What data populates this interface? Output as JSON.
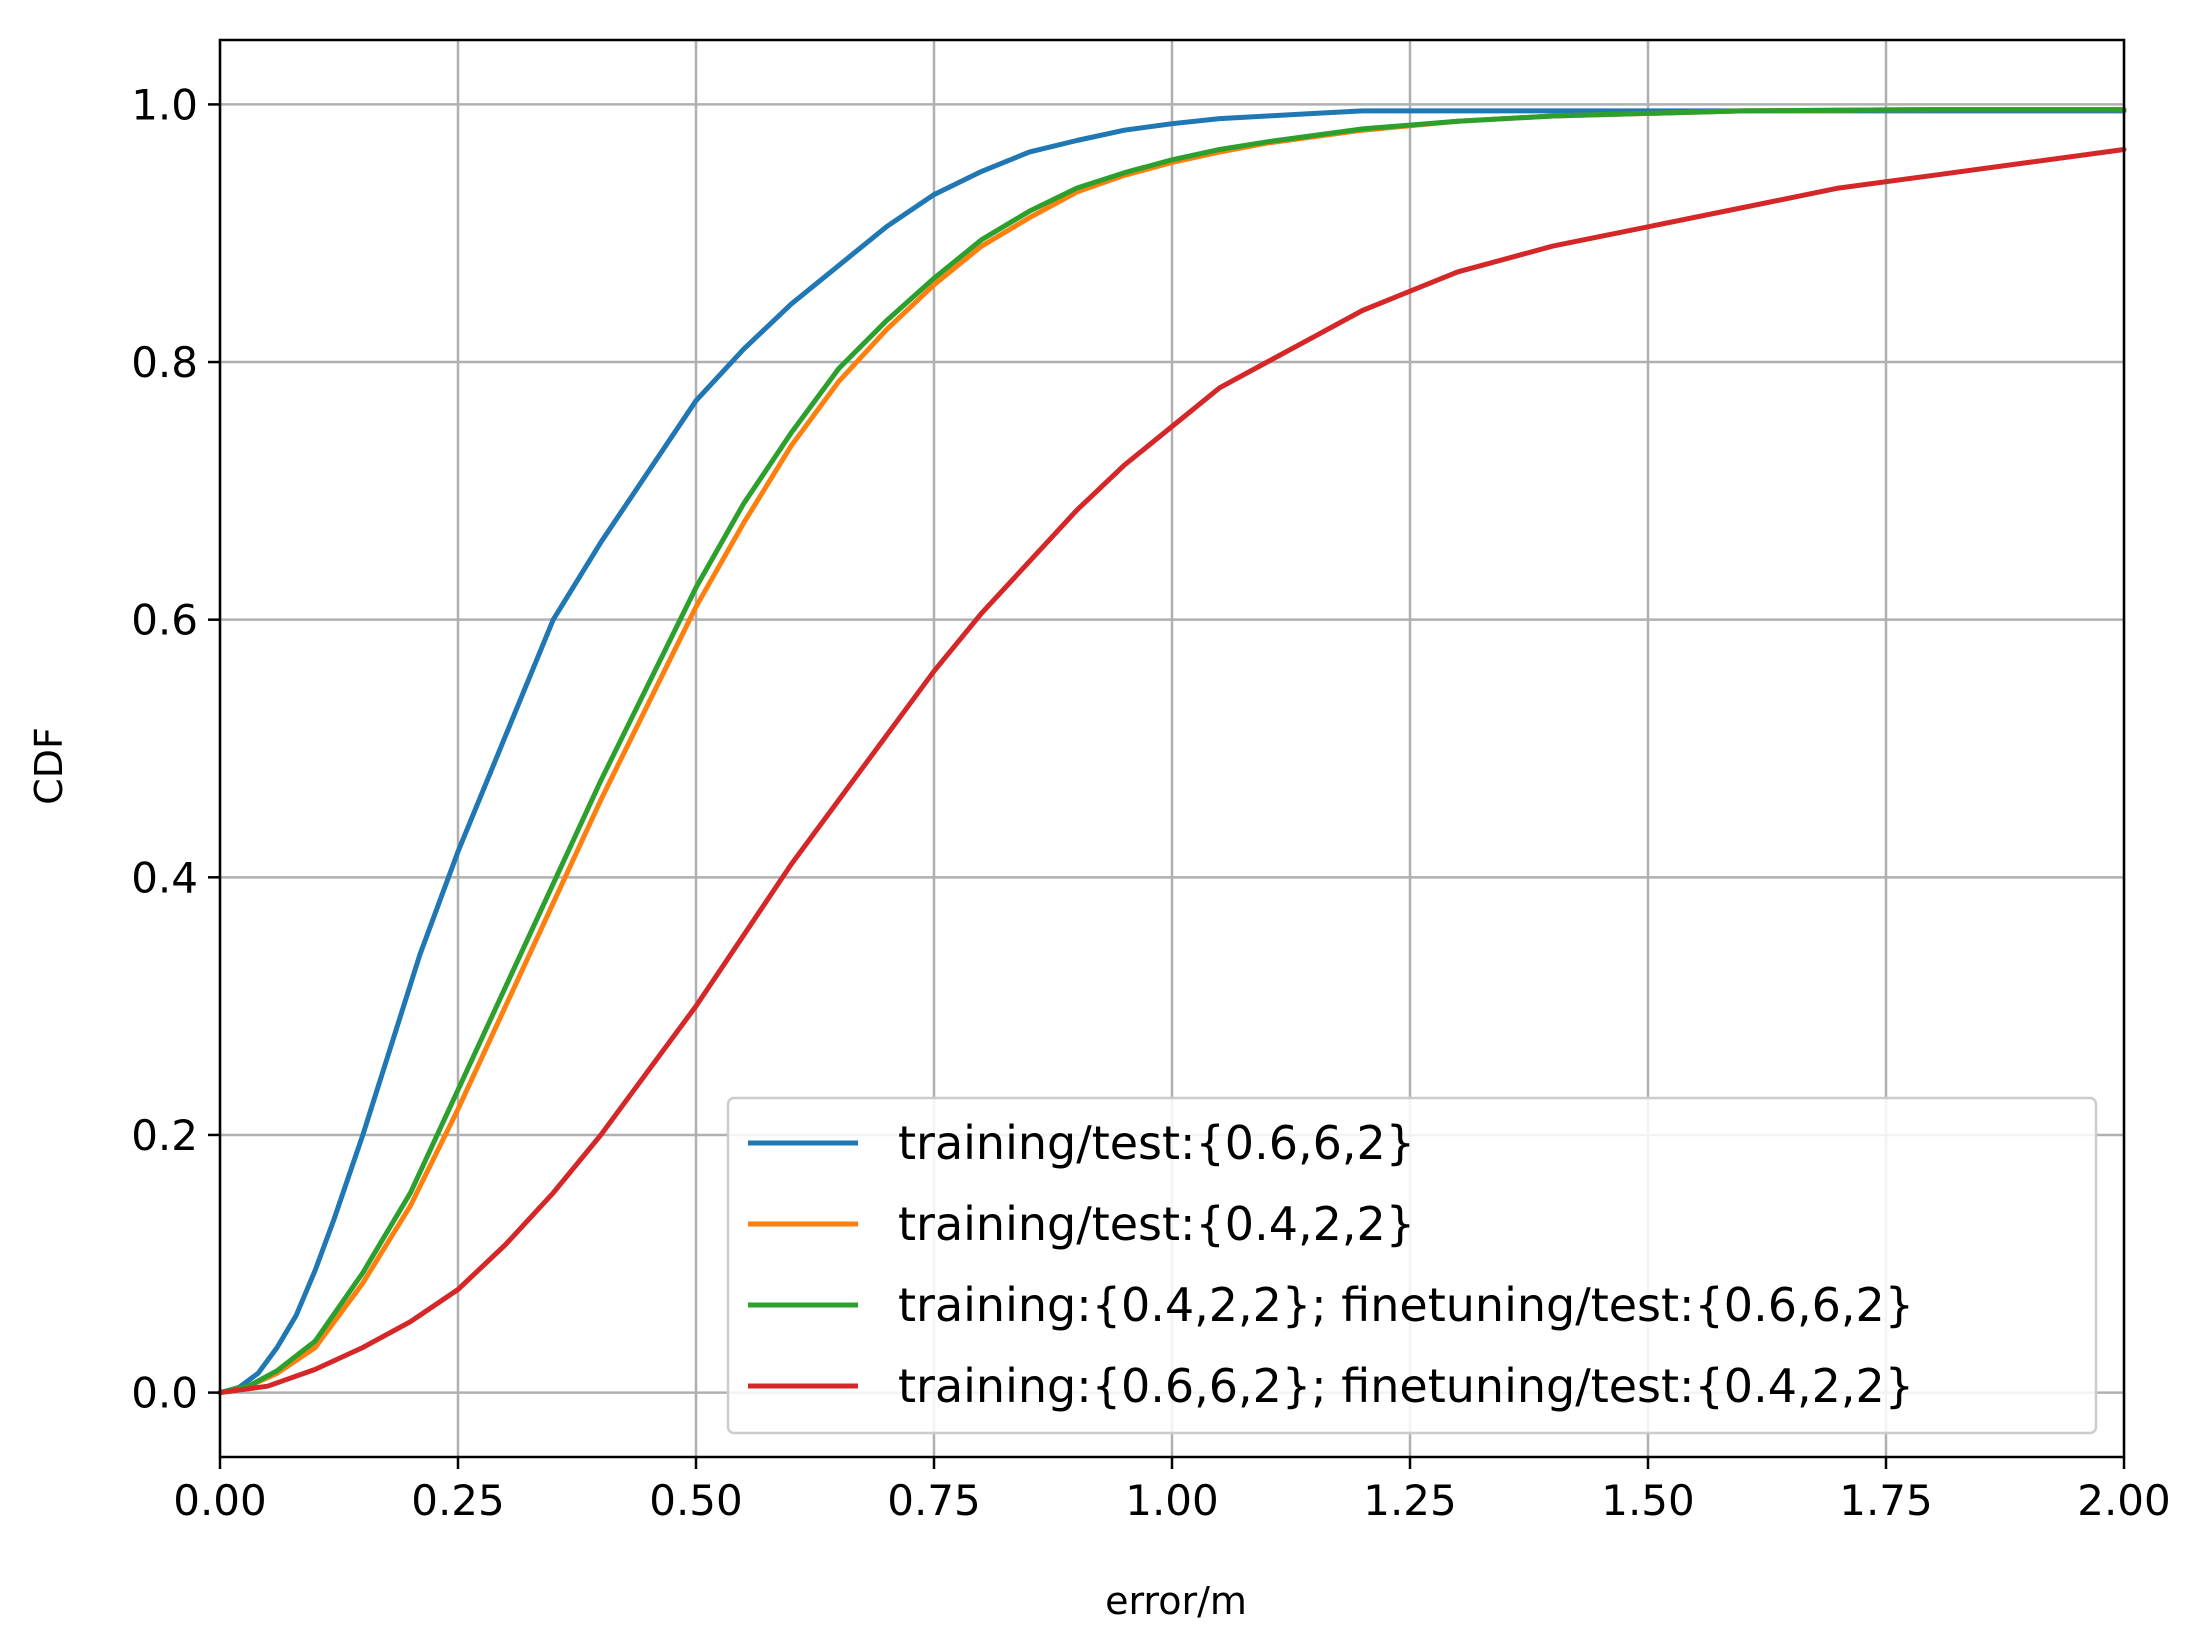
{
  "chart_data": {
    "type": "line",
    "title": "",
    "xlabel": "error/m",
    "ylabel": "CDF",
    "xlim": [
      0,
      2.0
    ],
    "ylim": [
      -0.05,
      1.05
    ],
    "x_ticks": [
      {
        "value": 0.0,
        "label": "0.00"
      },
      {
        "value": 0.25,
        "label": "0.25"
      },
      {
        "value": 0.5,
        "label": "0.50"
      },
      {
        "value": 0.75,
        "label": "0.75"
      },
      {
        "value": 1.0,
        "label": "1.00"
      },
      {
        "value": 1.25,
        "label": "1.25"
      },
      {
        "value": 1.5,
        "label": "1.50"
      },
      {
        "value": 1.75,
        "label": "1.75"
      },
      {
        "value": 2.0,
        "label": "2.00"
      }
    ],
    "y_ticks": [
      {
        "value": 0.0,
        "label": "0.0"
      },
      {
        "value": 0.2,
        "label": "0.2"
      },
      {
        "value": 0.4,
        "label": "0.4"
      },
      {
        "value": 0.6,
        "label": "0.6"
      },
      {
        "value": 0.8,
        "label": "0.8"
      },
      {
        "value": 1.0,
        "label": "1.0"
      }
    ],
    "grid": true,
    "legend_position": "lower-right",
    "series": [
      {
        "name": "training/test:{0.6,6,2}",
        "color": "#1f77b4",
        "x": [
          0,
          0.02,
          0.04,
          0.06,
          0.08,
          0.1,
          0.12,
          0.15,
          0.18,
          0.21,
          0.25,
          0.3,
          0.35,
          0.4,
          0.45,
          0.5,
          0.55,
          0.6,
          0.65,
          0.7,
          0.75,
          0.8,
          0.85,
          0.9,
          0.95,
          1.0,
          1.05,
          1.1,
          1.15,
          1.2,
          1.3,
          1.5,
          2.0
        ],
        "y": [
          0.0,
          0.004,
          0.015,
          0.035,
          0.06,
          0.095,
          0.135,
          0.2,
          0.27,
          0.34,
          0.42,
          0.51,
          0.6,
          0.66,
          0.715,
          0.77,
          0.81,
          0.845,
          0.875,
          0.905,
          0.93,
          0.948,
          0.963,
          0.972,
          0.98,
          0.985,
          0.989,
          0.991,
          0.993,
          0.995,
          0.995,
          0.995,
          0.995
        ]
      },
      {
        "name": "training/test:{0.4,2,2}",
        "color": "#ff7f0e",
        "x": [
          0,
          0.03,
          0.06,
          0.1,
          0.15,
          0.2,
          0.25,
          0.3,
          0.35,
          0.4,
          0.45,
          0.5,
          0.55,
          0.6,
          0.65,
          0.7,
          0.75,
          0.8,
          0.85,
          0.9,
          0.95,
          1.0,
          1.05,
          1.1,
          1.2,
          1.3,
          1.4,
          1.5,
          1.6,
          1.8,
          2.0
        ],
        "y": [
          0.0,
          0.005,
          0.015,
          0.035,
          0.085,
          0.145,
          0.22,
          0.3,
          0.38,
          0.46,
          0.535,
          0.61,
          0.675,
          0.735,
          0.785,
          0.825,
          0.86,
          0.89,
          0.912,
          0.932,
          0.945,
          0.955,
          0.963,
          0.97,
          0.98,
          0.987,
          0.991,
          0.993,
          0.995,
          0.996,
          0.996
        ]
      },
      {
        "name": "training:{0.4,2,2}; finetuning/test:{0.6,6,2}",
        "color": "#2ca02c",
        "x": [
          0,
          0.03,
          0.06,
          0.1,
          0.15,
          0.2,
          0.25,
          0.3,
          0.35,
          0.4,
          0.45,
          0.5,
          0.55,
          0.6,
          0.65,
          0.7,
          0.75,
          0.8,
          0.85,
          0.9,
          0.95,
          1.0,
          1.05,
          1.1,
          1.2,
          1.3,
          1.4,
          1.5,
          1.6,
          1.8,
          2.0
        ],
        "y": [
          0.0,
          0.005,
          0.017,
          0.04,
          0.093,
          0.155,
          0.235,
          0.315,
          0.395,
          0.475,
          0.55,
          0.625,
          0.69,
          0.745,
          0.795,
          0.832,
          0.865,
          0.895,
          0.917,
          0.935,
          0.947,
          0.957,
          0.965,
          0.971,
          0.981,
          0.987,
          0.991,
          0.993,
          0.995,
          0.996,
          0.996
        ]
      },
      {
        "name": "training:{0.6,6,2}; finetuning/test:{0.4,2,2}",
        "color": "#d62728",
        "x": [
          0,
          0.05,
          0.1,
          0.15,
          0.2,
          0.25,
          0.3,
          0.35,
          0.4,
          0.45,
          0.5,
          0.55,
          0.6,
          0.65,
          0.7,
          0.75,
          0.8,
          0.85,
          0.9,
          0.95,
          1.0,
          1.05,
          1.1,
          1.15,
          1.2,
          1.3,
          1.4,
          1.5,
          1.6,
          1.7,
          1.8,
          1.9,
          2.0
        ],
        "y": [
          0.0,
          0.005,
          0.018,
          0.035,
          0.055,
          0.08,
          0.115,
          0.155,
          0.2,
          0.25,
          0.3,
          0.355,
          0.41,
          0.46,
          0.51,
          0.56,
          0.605,
          0.645,
          0.685,
          0.72,
          0.75,
          0.78,
          0.8,
          0.82,
          0.84,
          0.87,
          0.89,
          0.905,
          0.92,
          0.935,
          0.945,
          0.955,
          0.965
        ]
      }
    ]
  }
}
